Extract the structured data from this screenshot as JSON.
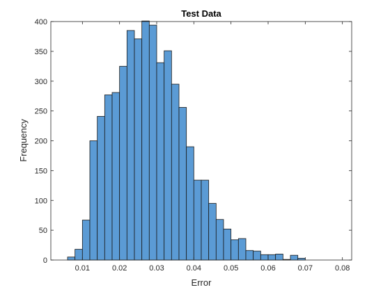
{
  "chart_data": {
    "type": "bar",
    "title": "Test Data",
    "xlabel": "Error",
    "ylabel": "Frequency",
    "xlim": [
      0.0015,
      0.0825
    ],
    "ylim": [
      0,
      400
    ],
    "xticks": [
      0.01,
      0.02,
      0.03,
      0.04,
      0.05,
      0.06,
      0.07,
      0.08
    ],
    "xtick_labels": [
      "0.01",
      "0.02",
      "0.03",
      "0.04",
      "0.05",
      "0.06",
      "0.07",
      "0.08"
    ],
    "yticks": [
      0,
      50,
      100,
      150,
      200,
      250,
      300,
      350,
      400
    ],
    "ytick_labels": [
      "0",
      "50",
      "100",
      "150",
      "200",
      "250",
      "300",
      "350",
      "400"
    ],
    "grid": false,
    "bin_width": 0.002,
    "bin_starts": [
      0.006,
      0.008,
      0.01,
      0.012,
      0.014,
      0.016,
      0.018,
      0.02,
      0.022,
      0.024,
      0.026,
      0.028,
      0.03,
      0.032,
      0.034,
      0.036,
      0.038,
      0.04,
      0.042,
      0.044,
      0.046,
      0.048,
      0.05,
      0.052,
      0.054,
      0.056,
      0.058,
      0.06,
      0.062,
      0.064,
      0.066,
      0.068
    ],
    "values": [
      5,
      18,
      67,
      200,
      241,
      277,
      281,
      325,
      385,
      371,
      401,
      394,
      331,
      351,
      295,
      256,
      190,
      134,
      134,
      95,
      68,
      52,
      34,
      36,
      16,
      15,
      9,
      9,
      10,
      1,
      8,
      3
    ],
    "colors": {
      "bar_fill": "#5b9bd5",
      "bar_edge": "#1a1a1a",
      "axis": "#262626"
    }
  }
}
